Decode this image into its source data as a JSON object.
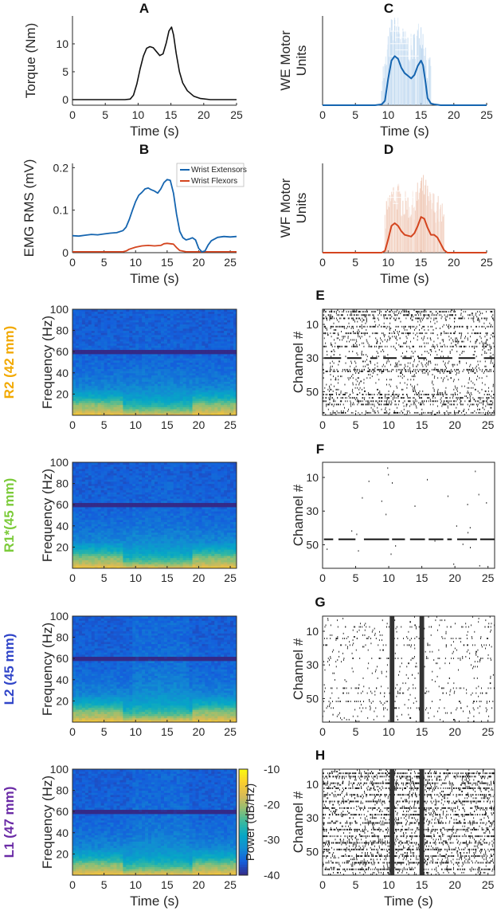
{
  "colors": {
    "extensors": "#1565b0",
    "flexors": "#d4451f",
    "we_shade": "#a6c9ea",
    "wf_shade": "#eab59c",
    "r2_label": "#f2a900",
    "r1_label": "#7ccb3a",
    "l2_label": "#2f44c8",
    "l1_label": "#6a2aa6",
    "axis": "#262626",
    "raster": "#111111"
  },
  "common": {
    "time_label": "Time (s)",
    "freq_label": "Frequency (Hz)",
    "channel_label": "Channel #"
  },
  "colorbar": {
    "label": "Power (dB/Hz)",
    "ticks": [
      -10,
      -20,
      -30,
      -40
    ],
    "tick_labels": [
      "-10",
      "-20",
      "-30",
      "-40"
    ]
  },
  "chart_data": [
    {
      "id": "A",
      "letter": "A",
      "type": "line",
      "title": "A",
      "xlabel": "Time (s)",
      "ylabel": "Torque (Nm)",
      "xlim": [
        0,
        25
      ],
      "ylim": [
        -1,
        15
      ],
      "xticks": [
        0,
        5,
        10,
        15,
        20,
        25
      ],
      "yticks": [
        0,
        5,
        10
      ],
      "series": [
        {
          "name": "Torque",
          "x": [
            0,
            2,
            4,
            6,
            8,
            8.8,
            9.3,
            9.8,
            10.3,
            10.8,
            11.3,
            11.8,
            12.3,
            12.8,
            13.3,
            13.8,
            14.3,
            14.7,
            15.1,
            15.4,
            15.8,
            16.3,
            16.8,
            17.5,
            18.5,
            19.5,
            21,
            23,
            25
          ],
          "y": [
            0,
            0,
            0,
            0,
            0,
            0.1,
            0.8,
            2.8,
            5.5,
            7.8,
            9.2,
            9.5,
            9.3,
            8.6,
            7.9,
            8.2,
            10.2,
            12.3,
            13.0,
            11.6,
            8.3,
            5.0,
            3.0,
            1.6,
            0.6,
            0.2,
            0,
            0,
            0
          ]
        }
      ]
    },
    {
      "id": "B",
      "letter": "B",
      "type": "line",
      "title": "B",
      "xlabel": "Time (s)",
      "ylabel": "EMG RMS (mV)",
      "xlim": [
        0,
        26
      ],
      "ylim": [
        0,
        0.21
      ],
      "xticks": [
        0,
        5,
        10,
        15,
        20,
        25
      ],
      "yticks": [
        0,
        0.1,
        0.2
      ],
      "legend": "top-right",
      "series": [
        {
          "name": "Wrist Extensors",
          "x": [
            0,
            1,
            2,
            3,
            4,
            5,
            6,
            7,
            8,
            8.5,
            9,
            9.5,
            10,
            10.5,
            11,
            11.5,
            12,
            12.5,
            13,
            13.5,
            14,
            14.5,
            15,
            15.5,
            16,
            16.5,
            17,
            17.5,
            18,
            18.5,
            19,
            19.5,
            20,
            20.5,
            21,
            21.5,
            22,
            23,
            24,
            25,
            26
          ],
          "y": [
            0.04,
            0.039,
            0.041,
            0.043,
            0.042,
            0.044,
            0.046,
            0.047,
            0.052,
            0.06,
            0.078,
            0.1,
            0.12,
            0.135,
            0.142,
            0.15,
            0.152,
            0.148,
            0.145,
            0.14,
            0.15,
            0.165,
            0.172,
            0.17,
            0.14,
            0.09,
            0.05,
            0.035,
            0.03,
            0.032,
            0.035,
            0.03,
            0.01,
            0.002,
            0.004,
            0.018,
            0.028,
            0.036,
            0.038,
            0.037,
            0.038
          ]
        },
        {
          "name": "Wrist Flexors",
          "x": [
            0,
            2,
            4,
            6,
            8,
            8.5,
            9,
            10,
            11,
            12,
            13,
            14,
            14.5,
            15,
            15.5,
            16,
            16.5,
            17,
            18,
            20,
            22,
            24,
            26
          ],
          "y": [
            0.002,
            0.002,
            0.002,
            0.002,
            0.002,
            0.004,
            0.008,
            0.013,
            0.016,
            0.017,
            0.016,
            0.017,
            0.021,
            0.022,
            0.021,
            0.02,
            0.012,
            0.005,
            0.002,
            0.002,
            0.002,
            0.002,
            0.002
          ]
        }
      ]
    },
    {
      "id": "C",
      "letter": "C",
      "type": "line",
      "title": "C",
      "xlabel": "Time (s)",
      "ylabel": "WE Motor Units",
      "xlim": [
        0,
        25
      ],
      "ylim": [
        0,
        1
      ],
      "xticks": [
        0,
        5,
        10,
        15,
        20,
        25
      ],
      "yticks": [],
      "series": [
        {
          "name": "WE motor unit activity",
          "x": [
            0,
            8,
            9,
            9.5,
            10,
            10.5,
            11,
            11.5,
            12,
            12.5,
            13,
            13.5,
            14,
            14.5,
            15,
            15.3,
            15.7,
            16,
            16.5,
            17,
            18,
            25
          ],
          "y": [
            0,
            0,
            0.01,
            0.05,
            0.3,
            0.5,
            0.55,
            0.52,
            0.42,
            0.36,
            0.33,
            0.3,
            0.34,
            0.44,
            0.5,
            0.45,
            0.25,
            0.08,
            0.02,
            0.01,
            0,
            0
          ]
        }
      ]
    },
    {
      "id": "D",
      "letter": "D",
      "type": "line",
      "title": "D",
      "xlabel": "Time (s)",
      "ylabel": "WF Motor Units",
      "xlim": [
        0,
        25
      ],
      "ylim": [
        0,
        1
      ],
      "xticks": [
        0,
        5,
        10,
        15,
        20,
        25
      ],
      "yticks": [],
      "series": [
        {
          "name": "WF motor unit activity",
          "x": [
            0,
            9,
            9.5,
            10,
            10.5,
            11,
            11.5,
            12,
            12.5,
            13,
            13.5,
            14,
            14.5,
            15,
            15.5,
            16,
            16.5,
            17,
            17.5,
            18,
            18.5,
            19,
            25
          ],
          "y": [
            0,
            0,
            0.02,
            0.15,
            0.3,
            0.33,
            0.3,
            0.24,
            0.2,
            0.19,
            0.18,
            0.22,
            0.3,
            0.4,
            0.38,
            0.28,
            0.2,
            0.2,
            0.17,
            0.1,
            0.03,
            0,
            0
          ]
        }
      ]
    },
    {
      "id": "R2",
      "row_label": "R2 (42 mm)",
      "type": "heatmap",
      "xlabel": "",
      "ylabel": "Frequency (Hz)",
      "xlim": [
        0,
        26
      ],
      "ylim": [
        0,
        100
      ],
      "xticks": [
        0,
        5,
        10,
        15,
        20,
        25
      ],
      "yticks": [
        20,
        40,
        60,
        80,
        100
      ],
      "zlim": [
        -40,
        -10
      ],
      "line_noise_hz": 60
    },
    {
      "id": "R1",
      "row_label": "R1*(45 mm)",
      "type": "heatmap",
      "xlabel": "",
      "ylabel": "Frequency (Hz)",
      "xlim": [
        0,
        26
      ],
      "ylim": [
        0,
        100
      ],
      "xticks": [
        0,
        5,
        10,
        15,
        20,
        25
      ],
      "yticks": [
        20,
        40,
        60,
        80,
        100
      ],
      "zlim": [
        -40,
        -10
      ],
      "line_noise_hz": 60
    },
    {
      "id": "L2",
      "row_label": "L2 (45 mm)",
      "type": "heatmap",
      "xlabel": "",
      "ylabel": "Frequency (Hz)",
      "xlim": [
        0,
        26
      ],
      "ylim": [
        0,
        100
      ],
      "xticks": [
        0,
        5,
        10,
        15,
        20,
        25
      ],
      "yticks": [
        20,
        40,
        60,
        80,
        100
      ],
      "zlim": [
        -40,
        -10
      ],
      "line_noise_hz": 60
    },
    {
      "id": "L1",
      "row_label": "L1 (47 mm)",
      "type": "heatmap",
      "xlabel": "Time (s)",
      "ylabel": "Frequency (Hz)",
      "xlim": [
        0,
        26
      ],
      "ylim": [
        0,
        100
      ],
      "xticks": [
        0,
        5,
        10,
        15,
        20,
        25
      ],
      "yticks": [
        20,
        40,
        60,
        80,
        100
      ],
      "zlim": [
        -40,
        -10
      ],
      "line_noise_hz": 60
    },
    {
      "id": "E",
      "letter": "E",
      "type": "scatter",
      "xlabel": "",
      "ylabel": "Channel #",
      "xlim": [
        0,
        26
      ],
      "ylim": [
        64,
        1
      ],
      "xticks": [
        0,
        5,
        10,
        15,
        20,
        25
      ],
      "yticks": [
        10,
        30,
        50
      ],
      "dense_channels": [
        2,
        4,
        6,
        11,
        15,
        23,
        30,
        37,
        38,
        52,
        54,
        56,
        58,
        63
      ],
      "solid_channels": [
        30
      ]
    },
    {
      "id": "F",
      "letter": "F",
      "type": "scatter",
      "xlabel": "",
      "ylabel": "Channel #",
      "xlim": [
        0,
        26
      ],
      "ylim": [
        64,
        1
      ],
      "xticks": [
        0,
        5,
        10,
        15,
        20,
        25
      ],
      "yticks": [
        10,
        30,
        50
      ],
      "dense_channels": [],
      "solid_channels": [
        47
      ]
    },
    {
      "id": "G",
      "letter": "G",
      "type": "scatter",
      "xlabel": "",
      "ylabel": "Channel #",
      "xlim": [
        0,
        26
      ],
      "ylim": [
        64,
        1
      ],
      "xticks": [
        0,
        5,
        10,
        15,
        20,
        25
      ],
      "yticks": [
        10,
        30,
        50
      ],
      "dense_channels": [
        7,
        14,
        18,
        26,
        44,
        47,
        52,
        56
      ],
      "solid_channels": [],
      "burst_times": [
        10.5,
        15.0
      ]
    },
    {
      "id": "H",
      "letter": "H",
      "type": "scatter",
      "xlabel": "Time (s)",
      "ylabel": "Channel #",
      "xlim": [
        0,
        26
      ],
      "ylim": [
        64,
        1
      ],
      "xticks": [
        0,
        5,
        10,
        15,
        20,
        25
      ],
      "yticks": [
        10,
        30,
        50
      ],
      "dense_channels": [
        3,
        5,
        9,
        12,
        16,
        20,
        24,
        28,
        33,
        37,
        41,
        45,
        49,
        53,
        57,
        61
      ],
      "solid_channels": [],
      "burst_times": [
        10.5,
        15.0
      ]
    }
  ]
}
